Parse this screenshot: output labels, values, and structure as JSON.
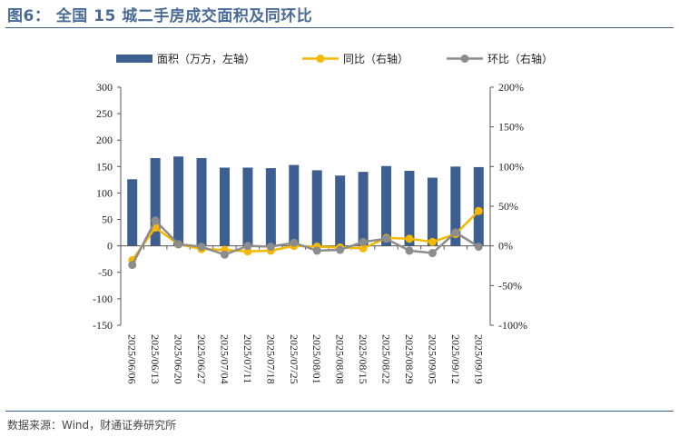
{
  "figure": {
    "title": "图6：  全国 15 城二手房成交面积及同环比",
    "source": "数据来源：Wind，财通证券研究所"
  },
  "colors": {
    "bar": "#3c5e91",
    "yoy": "#f5b800",
    "mom": "#8c8c8c",
    "title": "#4a6b96"
  },
  "chart_data": {
    "type": "bar",
    "title": "全国 15 城二手房成交面积及同环比",
    "categories": [
      "2025/06/06",
      "2025/06/13",
      "2025/06/20",
      "2025/06/27",
      "2025/07/04",
      "2025/07/11",
      "2025/07/18",
      "2025/07/25",
      "2025/08/01",
      "2025/08/08",
      "2025/08/15",
      "2025/08/22",
      "2025/08/29",
      "2025/09/05",
      "2025/09/12",
      "2025/09/19"
    ],
    "series": [
      {
        "name": "面积（万方，左轴）",
        "type": "bar",
        "axis": "left",
        "values": [
          126,
          166,
          169,
          166,
          148,
          148,
          147,
          153,
          143,
          133,
          140,
          151,
          142,
          129,
          150,
          149
        ]
      },
      {
        "name": "同比（右轴）",
        "type": "line",
        "axis": "right",
        "unit": "%",
        "values": [
          -18,
          23,
          2,
          -4,
          -5,
          -7,
          -6,
          0,
          -1,
          -2,
          -3,
          10,
          9,
          5,
          15,
          44
        ]
      },
      {
        "name": "环比（右轴）",
        "type": "line",
        "axis": "right",
        "unit": "%",
        "values": [
          -24,
          32,
          2,
          -1,
          -11,
          0,
          -1,
          4,
          -6,
          -5,
          5,
          9,
          -6,
          -9,
          17,
          -1
        ]
      }
    ],
    "y_left": {
      "min": -150,
      "max": 300,
      "ticks": [
        -150,
        -100,
        -50,
        0,
        50,
        100,
        150,
        200,
        250,
        300
      ]
    },
    "y_right": {
      "min": -100,
      "max": 200,
      "ticks": [
        "-100%",
        "-50%",
        "0%",
        "50%",
        "100%",
        "150%",
        "200%"
      ],
      "tick_values": [
        -100,
        -50,
        0,
        50,
        100,
        150,
        200
      ]
    },
    "legend": {
      "position": "top",
      "labels": [
        "面积（万方，左轴）",
        "同比（右轴）",
        "环比（右轴）"
      ]
    },
    "grid": false
  }
}
